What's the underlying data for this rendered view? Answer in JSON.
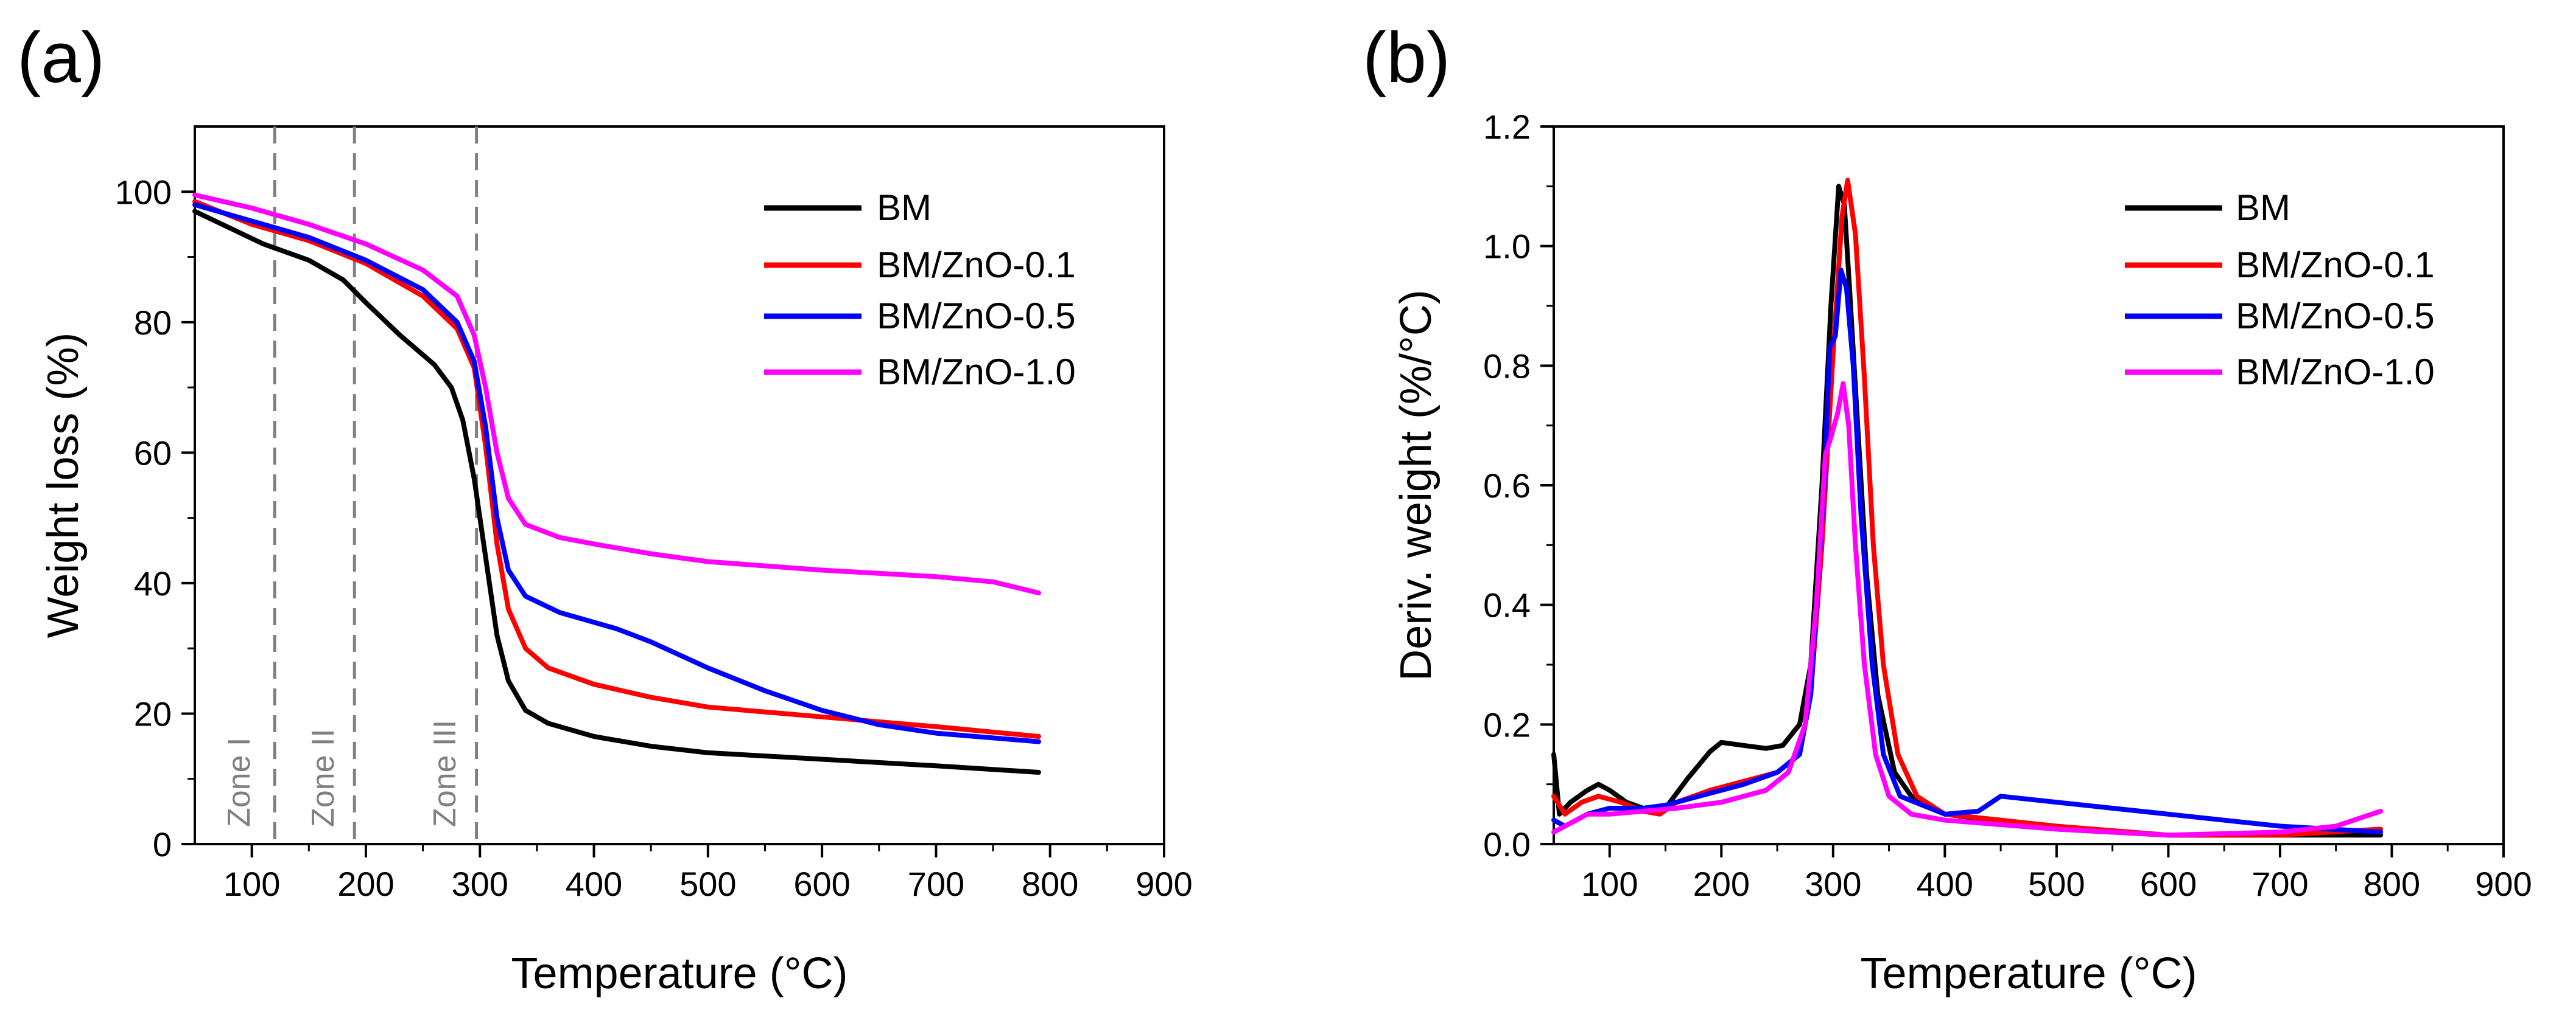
{
  "chart_data": [
    {
      "panel_label": "(a)",
      "type": "line",
      "xlabel": "Temperature (°C)",
      "ylabel": "Weight loss (%)",
      "xlim": [
        50,
        900
      ],
      "ylim": [
        0,
        110
      ],
      "xticks": [
        100,
        200,
        300,
        400,
        500,
        600,
        700,
        800,
        900
      ],
      "yticks": [
        0,
        20,
        40,
        60,
        80,
        100
      ],
      "grid": false,
      "legend_position": "top-right",
      "zones": [
        {
          "label": "Zone I",
          "boundary": 120
        },
        {
          "label": "Zone II",
          "boundary": 190
        },
        {
          "label": "Zone III",
          "boundary": 297
        }
      ],
      "series": [
        {
          "name": "BM",
          "color": "#000000",
          "points": [
            [
              50,
              97
            ],
            [
              80,
              94.5
            ],
            [
              110,
              92
            ],
            [
              150,
              89.5
            ],
            [
              180,
              86.5
            ],
            [
              200,
              83
            ],
            [
              230,
              78
            ],
            [
              260,
              73.5
            ],
            [
              275,
              70
            ],
            [
              285,
              65
            ],
            [
              295,
              56
            ],
            [
              305,
              44
            ],
            [
              315,
              32
            ],
            [
              325,
              25
            ],
            [
              340,
              20.5
            ],
            [
              360,
              18.5
            ],
            [
              400,
              16.5
            ],
            [
              450,
              15
            ],
            [
              500,
              14
            ],
            [
              600,
              13
            ],
            [
              700,
              12
            ],
            [
              790,
              11
            ]
          ]
        },
        {
          "name": "BM/ZnO-0.1",
          "color": "#ff0000",
          "points": [
            [
              50,
              98.5
            ],
            [
              100,
              95
            ],
            [
              150,
              92.5
            ],
            [
              200,
              89
            ],
            [
              250,
              84
            ],
            [
              280,
              79
            ],
            [
              295,
              73
            ],
            [
              305,
              61
            ],
            [
              315,
              46
            ],
            [
              325,
              36
            ],
            [
              340,
              30
            ],
            [
              360,
              27
            ],
            [
              400,
              24.5
            ],
            [
              450,
              22.5
            ],
            [
              500,
              21
            ],
            [
              600,
              19.5
            ],
            [
              700,
              18
            ],
            [
              790,
              16.5
            ]
          ]
        },
        {
          "name": "BM/ZnO-0.5",
          "color": "#0000ff",
          "points": [
            [
              50,
              98
            ],
            [
              100,
              95.5
            ],
            [
              150,
              93
            ],
            [
              200,
              89.5
            ],
            [
              250,
              85
            ],
            [
              280,
              80
            ],
            [
              295,
              74
            ],
            [
              305,
              64
            ],
            [
              315,
              50
            ],
            [
              325,
              42
            ],
            [
              340,
              38
            ],
            [
              370,
              35.5
            ],
            [
              420,
              33
            ],
            [
              450,
              31
            ],
            [
              500,
              27
            ],
            [
              550,
              23.5
            ],
            [
              600,
              20.5
            ],
            [
              650,
              18.3
            ],
            [
              700,
              17
            ],
            [
              790,
              15.7
            ]
          ]
        },
        {
          "name": "BM/ZnO-1.0",
          "color": "#ff00ff",
          "points": [
            [
              50,
              99.5
            ],
            [
              100,
              97.5
            ],
            [
              150,
              95
            ],
            [
              200,
              92
            ],
            [
              250,
              88
            ],
            [
              280,
              84
            ],
            [
              295,
              78
            ],
            [
              305,
              70
            ],
            [
              315,
              60
            ],
            [
              325,
              53
            ],
            [
              340,
              49
            ],
            [
              370,
              47
            ],
            [
              400,
              46
            ],
            [
              450,
              44.5
            ],
            [
              500,
              43.3
            ],
            [
              600,
              42
            ],
            [
              700,
              41
            ],
            [
              750,
              40.2
            ],
            [
              790,
              38.5
            ]
          ]
        }
      ]
    },
    {
      "panel_label": "(b)",
      "type": "line",
      "xlabel": "Temperature (°C)",
      "ylabel": "Deriv. weight (%/°C)",
      "xlim": [
        50,
        900
      ],
      "ylim": [
        0,
        1.2
      ],
      "xticks": [
        100,
        200,
        300,
        400,
        500,
        600,
        700,
        800,
        900
      ],
      "yticks": [
        0.0,
        0.2,
        0.4,
        0.6,
        0.8,
        1.0,
        1.2
      ],
      "ytick_labels": [
        "0.0",
        "0.2",
        "0.4",
        "0.6",
        "0.8",
        "1.0",
        "1.2"
      ],
      "grid": false,
      "legend_position": "top-right",
      "series": [
        {
          "name": "BM",
          "color": "#000000",
          "points": [
            [
              50,
              0.15
            ],
            [
              55,
              0.05
            ],
            [
              65,
              0.07
            ],
            [
              80,
              0.09
            ],
            [
              90,
              0.1
            ],
            [
              100,
              0.09
            ],
            [
              115,
              0.07
            ],
            [
              130,
              0.06
            ],
            [
              150,
              0.06
            ],
            [
              170,
              0.11
            ],
            [
              190,
              0.155
            ],
            [
              200,
              0.17
            ],
            [
              220,
              0.165
            ],
            [
              240,
              0.16
            ],
            [
              255,
              0.165
            ],
            [
              270,
              0.2
            ],
            [
              280,
              0.3
            ],
            [
              290,
              0.6
            ],
            [
              298,
              0.9
            ],
            [
              305,
              1.1
            ],
            [
              310,
              1.07
            ],
            [
              315,
              0.92
            ],
            [
              322,
              0.7
            ],
            [
              330,
              0.45
            ],
            [
              340,
              0.25
            ],
            [
              355,
              0.12
            ],
            [
              370,
              0.08
            ],
            [
              400,
              0.05
            ],
            [
              500,
              0.025
            ],
            [
              600,
              0.015
            ],
            [
              700,
              0.015
            ],
            [
              790,
              0.015
            ]
          ]
        },
        {
          "name": "BM/ZnO-0.1",
          "color": "#ff0000",
          "points": [
            [
              50,
              0.08
            ],
            [
              60,
              0.05
            ],
            [
              75,
              0.07
            ],
            [
              90,
              0.08
            ],
            [
              110,
              0.07
            ],
            [
              130,
              0.055
            ],
            [
              145,
              0.05
            ],
            [
              160,
              0.07
            ],
            [
              190,
              0.09
            ],
            [
              220,
              0.105
            ],
            [
              250,
              0.12
            ],
            [
              270,
              0.15
            ],
            [
              280,
              0.25
            ],
            [
              290,
              0.5
            ],
            [
              300,
              0.82
            ],
            [
              308,
              1.05
            ],
            [
              313,
              1.11
            ],
            [
              320,
              1.02
            ],
            [
              328,
              0.78
            ],
            [
              336,
              0.5
            ],
            [
              345,
              0.3
            ],
            [
              358,
              0.15
            ],
            [
              375,
              0.08
            ],
            [
              400,
              0.05
            ],
            [
              500,
              0.03
            ],
            [
              600,
              0.015
            ],
            [
              700,
              0.015
            ],
            [
              790,
              0.025
            ]
          ]
        },
        {
          "name": "BM/ZnO-0.5",
          "color": "#0000ff",
          "points": [
            [
              50,
              0.04
            ],
            [
              60,
              0.03
            ],
            [
              80,
              0.05
            ],
            [
              100,
              0.06
            ],
            [
              130,
              0.06
            ],
            [
              150,
              0.065
            ],
            [
              180,
              0.08
            ],
            [
              220,
              0.1
            ],
            [
              250,
              0.12
            ],
            [
              270,
              0.15
            ],
            [
              280,
              0.25
            ],
            [
              292,
              0.6
            ],
            [
              297,
              0.83
            ],
            [
              302,
              0.85
            ],
            [
              307,
              0.96
            ],
            [
              312,
              0.93
            ],
            [
              318,
              0.8
            ],
            [
              325,
              0.55
            ],
            [
              335,
              0.3
            ],
            [
              345,
              0.15
            ],
            [
              360,
              0.08
            ],
            [
              400,
              0.05
            ],
            [
              430,
              0.055
            ],
            [
              450,
              0.08
            ],
            [
              500,
              0.07
            ],
            [
              550,
              0.06
            ],
            [
              600,
              0.05
            ],
            [
              650,
              0.04
            ],
            [
              700,
              0.03
            ],
            [
              790,
              0.02
            ]
          ]
        },
        {
          "name": "BM/ZnO-1.0",
          "color": "#ff00ff",
          "points": [
            [
              50,
              0.02
            ],
            [
              60,
              0.03
            ],
            [
              80,
              0.05
            ],
            [
              100,
              0.05
            ],
            [
              130,
              0.055
            ],
            [
              160,
              0.06
            ],
            [
              200,
              0.07
            ],
            [
              240,
              0.09
            ],
            [
              260,
              0.12
            ],
            [
              275,
              0.2
            ],
            [
              285,
              0.4
            ],
            [
              293,
              0.65
            ],
            [
              298,
              0.68
            ],
            [
              304,
              0.72
            ],
            [
              309,
              0.77
            ],
            [
              314,
              0.7
            ],
            [
              320,
              0.5
            ],
            [
              328,
              0.3
            ],
            [
              338,
              0.15
            ],
            [
              350,
              0.08
            ],
            [
              370,
              0.05
            ],
            [
              400,
              0.04
            ],
            [
              500,
              0.025
            ],
            [
              600,
              0.015
            ],
            [
              700,
              0.02
            ],
            [
              750,
              0.03
            ],
            [
              790,
              0.055
            ]
          ]
        }
      ]
    }
  ]
}
